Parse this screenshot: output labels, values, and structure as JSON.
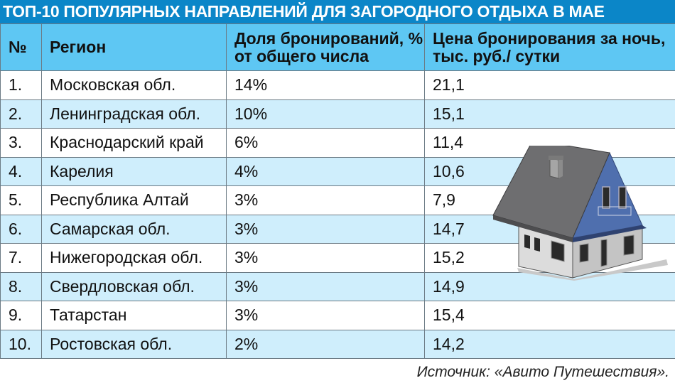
{
  "title": "ТОП-10 ПОПУЛЯРНЫХ НАПРАВЛЕНИЙ ДЛЯ ЗАГОРОДНОГО ОТДЫХА В МАЕ",
  "table": {
    "headers": {
      "num": "№",
      "region": "Регион",
      "share": "Доля бронирований, % от общего числа",
      "price": "Цена бронирования за ночь, тыс. руб./ сутки"
    },
    "rows": [
      {
        "num": "1.",
        "region": "Московская обл.",
        "share": "14%",
        "price": "21,1"
      },
      {
        "num": "2.",
        "region": "Ленинградская обл.",
        "share": "10%",
        "price": "15,1"
      },
      {
        "num": "3.",
        "region": "Краснодарский край",
        "share": "6%",
        "price": "11,4"
      },
      {
        "num": "4.",
        "region": "Карелия",
        "share": "4%",
        "price": "10,6"
      },
      {
        "num": "5.",
        "region": "Республика Алтай",
        "share": "3%",
        "price": "7,9"
      },
      {
        "num": "6.",
        "region": "Самарская обл.",
        "share": "3%",
        "price": "14,7"
      },
      {
        "num": "7.",
        "region": "Нижегородская обл.",
        "share": "3%",
        "price": "15,2"
      },
      {
        "num": "8.",
        "region": "Свердловская обл.",
        "share": "3%",
        "price": "14,9"
      },
      {
        "num": "9.",
        "region": "Татарстан",
        "share": "3%",
        "price": "15,4"
      },
      {
        "num": "10.",
        "region": "Ростовская обл.",
        "share": "2%",
        "price": "14,2"
      }
    ]
  },
  "source": "Источник: «Авито Путешествия».",
  "colors": {
    "title_bg": "#0b86c8",
    "header_bg": "#5ec7f3",
    "stripe_bg": "#cfeefc"
  },
  "illustration": "house-icon"
}
